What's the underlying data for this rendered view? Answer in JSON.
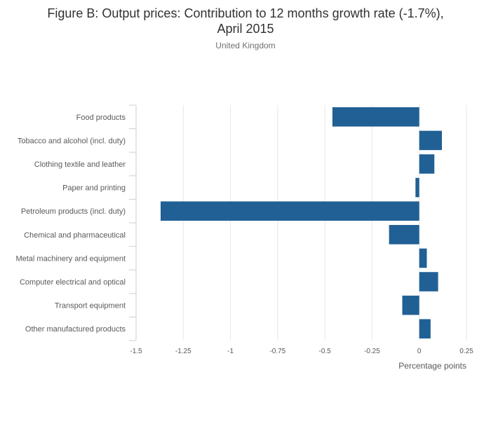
{
  "header": {
    "title_line1": "Figure B: Output prices: Contribution to 12 months growth rate (-1.7%),",
    "title_line2": "April 2015",
    "subtitle": "United Kingdom"
  },
  "chart_data": {
    "type": "bar",
    "orientation": "horizontal",
    "title": "Figure B: Output prices: Contribution to 12 months growth rate (-1.7%), April 2015",
    "subtitle": "United Kingdom",
    "xlabel": "Percentage points",
    "ylabel": "",
    "xlim": [
      -1.5,
      0.25
    ],
    "xticks": [
      -1.5,
      -1.25,
      -1,
      -0.75,
      -0.5,
      -0.25,
      0,
      0.25
    ],
    "xtick_labels": [
      "-1.5",
      "-1.25",
      "-1",
      "-0.75",
      "-0.5",
      "-0.25",
      "0",
      "0.25"
    ],
    "grid": true,
    "bar_color": "#206095",
    "categories": [
      "Food products",
      "Tobacco and alcohol (incl. duty)",
      "Clothing textile and leather",
      "Paper and printing",
      "Petroleum products (incl. duty)",
      "Chemical and pharmaceutical",
      "Metal machinery and equipment",
      "Computer electrical and optical",
      "Transport equipment",
      "Other manufactured products"
    ],
    "values": [
      -0.46,
      0.12,
      0.08,
      -0.02,
      -1.37,
      -0.16,
      0.04,
      0.1,
      -0.09,
      0.06
    ]
  }
}
